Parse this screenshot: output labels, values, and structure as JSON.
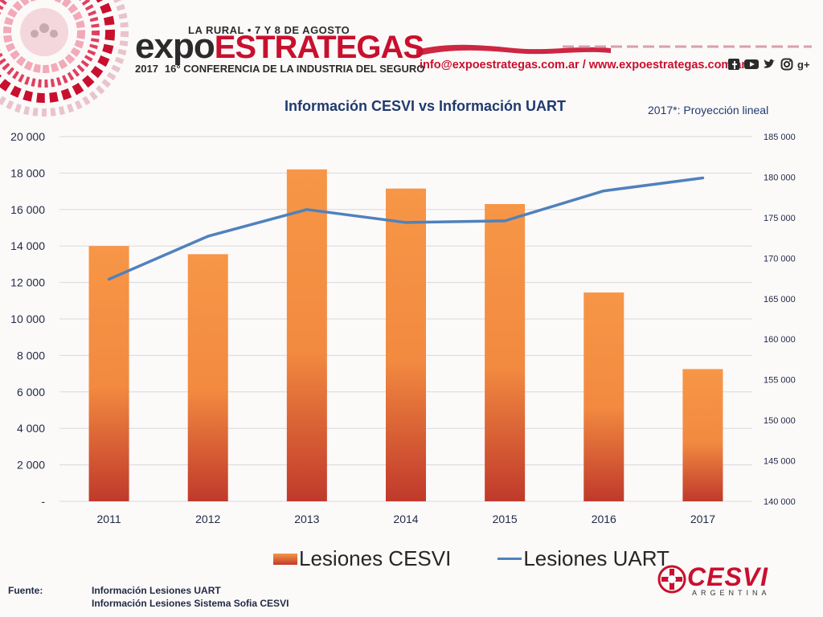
{
  "header": {
    "event_top": "LA RURAL • 7 Y 8 DE AGOSTO",
    "brand_expo": "expo",
    "brand_estrategas": "ESTRATEGAS",
    "year": "2017",
    "conference": "16° CONFERENCIA DE LA INDUSTRIA DEL SEGURO",
    "contact": "info@expoestrategas.com.ar / www.expoestrategas.com.ar",
    "social_icons": [
      "facebook-icon",
      "youtube-icon",
      "twitter-icon",
      "instagram-icon",
      "google-plus-icon"
    ]
  },
  "colors": {
    "accent_red": "#c8102e",
    "bar_top": "#f79646",
    "bar_bottom": "#c0392b",
    "line": "#4f81bd",
    "title": "#1f3b6e"
  },
  "chart_data": {
    "type": "bar",
    "title": "Información CESVI vs Información UART",
    "note": "2017*: Proyección lineal",
    "categories": [
      "2011",
      "2012",
      "2013",
      "2014",
      "2015",
      "2016",
      "2017"
    ],
    "series": [
      {
        "name": "Lesiones CESVI",
        "type": "bar",
        "axis": "left",
        "values": [
          14000,
          13550,
          18200,
          17150,
          16300,
          11450,
          7250
        ]
      },
      {
        "name": "Lesiones UART",
        "type": "line",
        "axis": "right",
        "values": [
          167400,
          172700,
          176000,
          174400,
          174600,
          178300,
          179900
        ]
      }
    ],
    "y_left": {
      "ylim": [
        0,
        20000
      ],
      "ticks": [
        "-",
        "2 000",
        "4 000",
        "6 000",
        "8 000",
        "10 000",
        "12 000",
        "14 000",
        "16 000",
        "18 000",
        "20 000"
      ]
    },
    "y_right": {
      "ylim": [
        140000,
        185000
      ],
      "ticks": [
        "140 000",
        "145 000",
        "150 000",
        "155 000",
        "160 000",
        "165 000",
        "170 000",
        "175 000",
        "180 000",
        "185 000"
      ]
    },
    "grid": true,
    "legend_position": "bottom"
  },
  "legend": {
    "cesvi": "Lesiones CESVI",
    "uart": "Lesiones UART"
  },
  "footer": {
    "label": "Fuente:",
    "source_1": "Información Lesiones UART",
    "source_2": "Información Lesiones Sistema Sofia CESVI"
  },
  "cesvi_logo": {
    "name": "CESVI",
    "sub": "ARGENTINA"
  }
}
